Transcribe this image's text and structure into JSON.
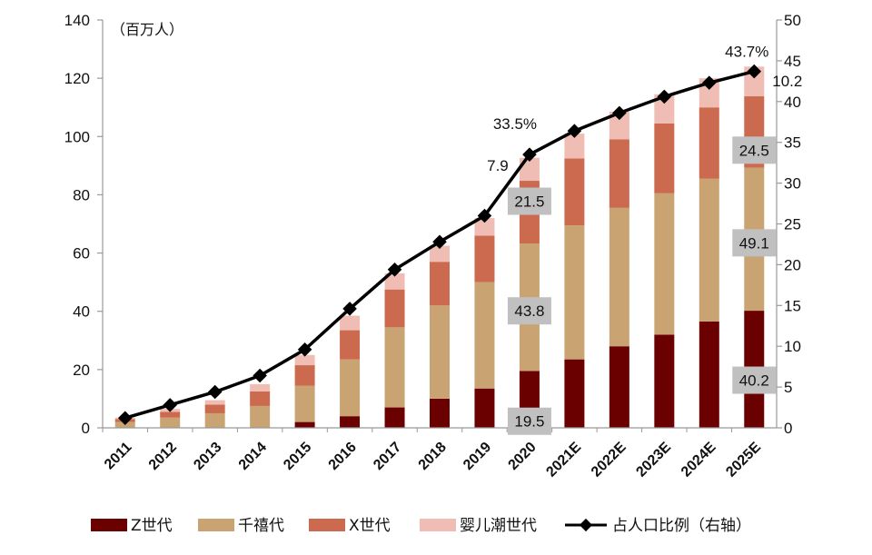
{
  "chart_data": {
    "type": "bar",
    "stacked": true,
    "unit_label": "（百万人）",
    "categories": [
      "2011",
      "2012",
      "2013",
      "2014",
      "2015",
      "2016",
      "2017",
      "2018",
      "2019",
      "2020",
      "2021E",
      "2022E",
      "2023E",
      "2024E",
      "2025E"
    ],
    "series": [
      {
        "name": "Z世代",
        "color": "#6b0000",
        "values": [
          0,
          0,
          0,
          0,
          2,
          4,
          7,
          10,
          13.5,
          19.5,
          23.5,
          28,
          32,
          36.5,
          40.2
        ]
      },
      {
        "name": "千禧代",
        "color": "#c9a472",
        "values": [
          2,
          3.5,
          5,
          7.5,
          12.5,
          19.5,
          27.5,
          32,
          36.5,
          43.8,
          46,
          47.5,
          48.5,
          49,
          49.1
        ]
      },
      {
        "name": "X世代",
        "color": "#cc6a50",
        "values": [
          1,
          2,
          3,
          5,
          7,
          10,
          13,
          15,
          16,
          21.5,
          23,
          23.5,
          24,
          24.5,
          24.5
        ]
      },
      {
        "name": "婴儿潮世代",
        "color": "#f0bdb4",
        "values": [
          0.5,
          1,
          1.5,
          2.5,
          3.5,
          5,
          5.5,
          5.5,
          6,
          7.9,
          8.5,
          9.5,
          10,
          10,
          10.2
        ]
      }
    ],
    "line_series": {
      "name": "占人口比例（右轴）",
      "axis": "right",
      "values": [
        1.2,
        2.8,
        4.4,
        6.4,
        9.6,
        14.6,
        19.4,
        22.8,
        26.0,
        33.5,
        36.4,
        38.6,
        40.6,
        42.3,
        43.7
      ]
    },
    "left_axis": {
      "ylim": [
        0,
        140
      ],
      "ticks": [
        "0",
        "20",
        "40",
        "60",
        "80",
        "100",
        "120",
        "140"
      ]
    },
    "right_axis": {
      "ylim": [
        0,
        50
      ],
      "ticks": [
        "0",
        "5",
        "10",
        "15",
        "20",
        "25",
        "30",
        "35",
        "40",
        "45",
        "50"
      ]
    },
    "annotations": {
      "pct_2020": "33.5%",
      "pct_2025": "43.7%",
      "boomer_2020": "7.9",
      "boomer_2025": "10.2",
      "x_2020": "21.5",
      "x_2025": "24.5",
      "mill_2020": "43.8",
      "mill_2025": "49.1",
      "z_2020": "19.5",
      "z_2025": "40.2"
    },
    "legend_position": "bottom",
    "grid": false
  }
}
